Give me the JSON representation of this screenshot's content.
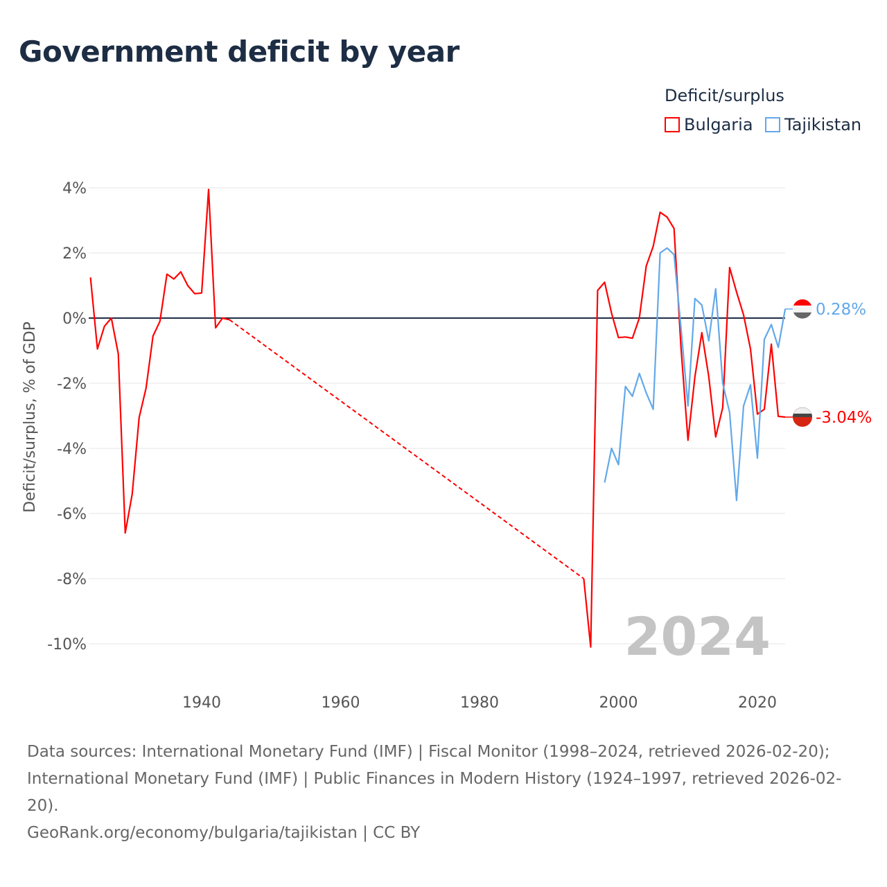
{
  "title": "Government deficit by year",
  "legend": {
    "title": "Deficit/surplus",
    "items": [
      {
        "name": "Bulgaria",
        "color": "#ff0000"
      },
      {
        "name": "Tajikistan",
        "color": "#62a8ea"
      }
    ]
  },
  "footer": {
    "line1": "Data sources: International Monetary Fund (IMF) | Fiscal Monitor (1998–2024, retrieved 2026-02-20); International Monetary Fund (IMF) | Public Finances in Modern History (1924–1997, retrieved 2026-02-20).",
    "line2": "GeoRank.org/economy/bulgaria/tajikistan | CC BY"
  },
  "chart_data": {
    "type": "line",
    "title": "Government deficit by year",
    "ylabel": "Deficit/surplus, % of GDP",
    "xlabel": "",
    "year_label": "2024",
    "xlim": [
      1923,
      2025
    ],
    "ylim": [
      -11,
      4.5
    ],
    "xticks": [
      {
        "v": 1940,
        "label": "1940"
      },
      {
        "v": 1960,
        "label": "1960"
      },
      {
        "v": 1980,
        "label": "1980"
      },
      {
        "v": 2000,
        "label": "2000"
      },
      {
        "v": 2020,
        "label": "2020"
      }
    ],
    "yticks": [
      {
        "v": 4,
        "label": "4%"
      },
      {
        "v": 2,
        "label": "2%"
      },
      {
        "v": 0,
        "label": "0%"
      },
      {
        "v": -2,
        "label": "-2%"
      },
      {
        "v": -4,
        "label": "-4%"
      },
      {
        "v": -6,
        "label": "-6%"
      },
      {
        "v": -8,
        "label": "-8%"
      },
      {
        "v": -10,
        "label": "-10%"
      }
    ],
    "series": [
      {
        "name": "Bulgaria",
        "color": "#ff0000",
        "end_label": "-3.04%",
        "gap": [
          1944,
          1995
        ],
        "x": [
          1924,
          1925,
          1926,
          1927,
          1928,
          1929,
          1930,
          1931,
          1932,
          1933,
          1934,
          1935,
          1936,
          1937,
          1938,
          1939,
          1940,
          1941,
          1942,
          1943,
          1944,
          1995,
          1996,
          1997,
          1998,
          1999,
          2000,
          2001,
          2002,
          2003,
          2004,
          2005,
          2006,
          2007,
          2008,
          2009,
          2010,
          2011,
          2012,
          2013,
          2014,
          2015,
          2016,
          2017,
          2018,
          2019,
          2020,
          2021,
          2022,
          2023,
          2024
        ],
        "y": [
          1.25,
          -0.95,
          -0.25,
          0,
          -1.1,
          -6.6,
          -5.4,
          -3.05,
          -2.15,
          -0.55,
          -0.1,
          1.35,
          1.2,
          1.42,
          1.0,
          0.75,
          0.77,
          3.95,
          -0.3,
          0.0,
          -0.05,
          -8.0,
          -10.1,
          0.85,
          1.1,
          0.15,
          -0.6,
          -0.58,
          -0.62,
          0.0,
          1.6,
          2.2,
          3.25,
          3.1,
          2.75,
          -0.9,
          -3.75,
          -1.8,
          -0.45,
          -1.8,
          -3.65,
          -2.75,
          1.55,
          0.8,
          0.1,
          -0.95,
          -2.95,
          -2.8,
          -0.8,
          -3.02,
          -3.04
        ]
      },
      {
        "name": "Tajikistan",
        "color": "#62a8ea",
        "end_label": "0.28%",
        "x": [
          1998,
          1999,
          2000,
          2001,
          2002,
          2003,
          2004,
          2005,
          2006,
          2007,
          2008,
          2009,
          2010,
          2011,
          2012,
          2013,
          2014,
          2015,
          2016,
          2017,
          2018,
          2019,
          2020,
          2021,
          2022,
          2023,
          2024
        ],
        "y": [
          -5.05,
          -4.0,
          -4.5,
          -2.1,
          -2.4,
          -1.7,
          -2.3,
          -2.8,
          2.0,
          2.15,
          1.95,
          -0.3,
          -2.7,
          0.6,
          0.4,
          -0.7,
          0.9,
          -2.0,
          -2.9,
          -5.6,
          -2.7,
          -2.05,
          -4.3,
          -0.65,
          -0.2,
          -0.9,
          0.28
        ]
      }
    ]
  }
}
